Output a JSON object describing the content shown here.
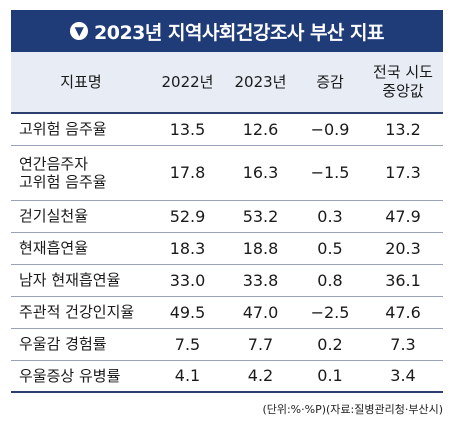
{
  "title": "2023년 지역사회건강조사 부산 지표",
  "title_icon": "down-arrow-circle-icon",
  "header": {
    "c0": "지표명",
    "c1": "2022년",
    "c2": "2023년",
    "c3": "증감",
    "c4a": "전국 시도",
    "c4b": "중앙값"
  },
  "rows": [
    {
      "label": "고위험 음주율",
      "label2": "",
      "y2022": "13.5",
      "y2023": "12.6",
      "change": "−0.9",
      "median": "13.2"
    },
    {
      "label": "연간음주자",
      "label2": "고위험 음주율",
      "y2022": "17.8",
      "y2023": "16.3",
      "change": "−1.5",
      "median": "17.3"
    },
    {
      "label": "걷기실천율",
      "label2": "",
      "y2022": "52.9",
      "y2023": "53.2",
      "change": "0.3",
      "median": "47.9"
    },
    {
      "label": "현재흡연율",
      "label2": "",
      "y2022": "18.3",
      "y2023": "18.8",
      "change": "0.5",
      "median": "20.3"
    },
    {
      "label": "남자 현재흡연율",
      "label2": "",
      "y2022": "33.0",
      "y2023": "33.8",
      "change": "0.8",
      "median": "36.1"
    },
    {
      "label": "주관적 건강인지율",
      "label2": "",
      "y2022": "49.5",
      "y2023": "47.0",
      "change": "−2.5",
      "median": "47.6"
    },
    {
      "label": "우울감 경험률",
      "label2": "",
      "y2022": "7.5",
      "y2023": "7.7",
      "change": "0.2",
      "median": "7.3"
    },
    {
      "label": "우울증상 유병률",
      "label2": "",
      "y2022": "4.1",
      "y2023": "4.2",
      "change": "0.1",
      "median": "3.4"
    }
  ],
  "source": "(단위:%·%P)(자료:질병관리청·부산시)"
}
